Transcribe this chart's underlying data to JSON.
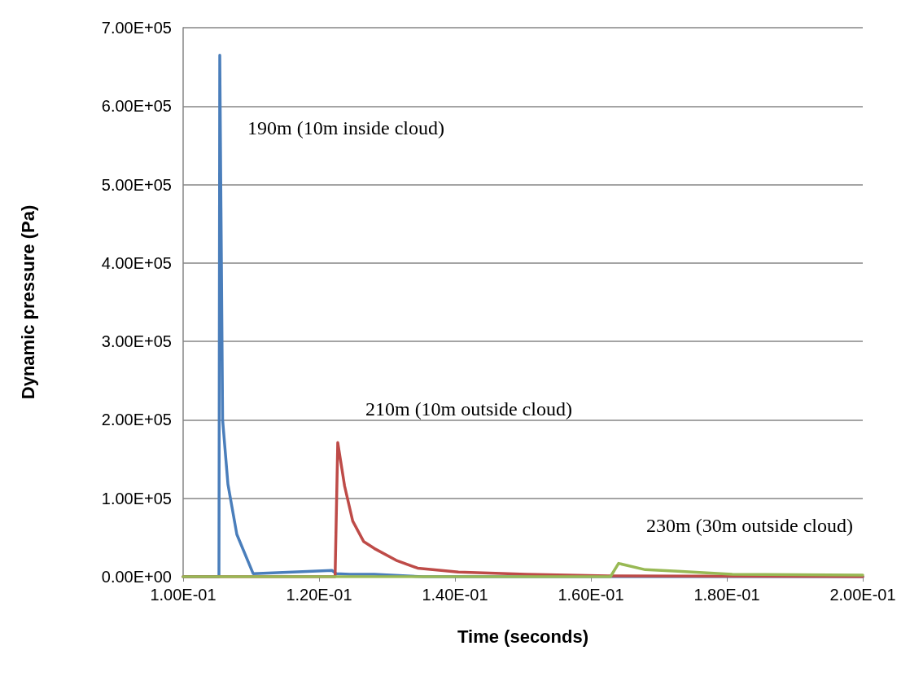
{
  "chart_data": {
    "type": "line",
    "xlabel": "Time (seconds)",
    "ylabel": "Dynamic pressure (Pa)",
    "xlim": [
      0.1,
      0.2
    ],
    "xticks": [
      {
        "value": 0.1,
        "label": "1.00E-01"
      },
      {
        "value": 0.12,
        "label": "1.20E-01"
      },
      {
        "value": 0.14,
        "label": "1.40E-01"
      },
      {
        "value": 0.16,
        "label": "1.60E-01"
      },
      {
        "value": 0.18,
        "label": "1.80E-01"
      },
      {
        "value": 0.2,
        "label": "2.00E-01"
      }
    ],
    "ylim": [
      0,
      700000
    ],
    "yticks": [
      {
        "value": 0,
        "label": "0.00E+00"
      },
      {
        "value": 100000,
        "label": "1.00E+05"
      },
      {
        "value": 200000,
        "label": "2.00E+05"
      },
      {
        "value": 300000,
        "label": "3.00E+05"
      },
      {
        "value": 400000,
        "label": "4.00E+05"
      },
      {
        "value": 500000,
        "label": "5.00E+05"
      },
      {
        "value": 600000,
        "label": "6.00E+05"
      },
      {
        "value": 700000,
        "label": "7.00E+05"
      }
    ],
    "grid": "y",
    "marker": "none",
    "line_style": "solid",
    "series": [
      {
        "name": "190m (10m inside cloud)",
        "color": "#4a7ebb",
        "x": [
          0.1,
          0.10527,
          0.10539,
          0.10581,
          0.10659,
          0.1079,
          0.1103,
          0.12192,
          0.12251,
          0.12455,
          0.12814,
          0.13533,
          0.2
        ],
        "values": [
          0,
          0,
          665000,
          200000,
          118000,
          54000,
          4000,
          8000,
          4000,
          3000,
          3000,
          0,
          0
        ]
      },
      {
        "name": "210m (10m outside cloud)",
        "color": "#be4b48",
        "x": [
          0.1,
          0.12236,
          0.12275,
          0.12375,
          0.12495,
          0.12655,
          0.12814,
          0.13134,
          0.1345,
          0.1405,
          0.1505,
          0.1625,
          0.2
        ],
        "values": [
          0,
          0,
          171000,
          116000,
          71000,
          45000,
          36000,
          21000,
          11000,
          6000,
          3000,
          1000,
          0
        ]
      },
      {
        "name": "230m (30m outside cloud)",
        "color": "#98b954",
        "x": [
          0.1,
          0.16287,
          0.16407,
          0.168,
          0.1728,
          0.1808,
          0.2
        ],
        "values": [
          0,
          0,
          17000,
          9000,
          7000,
          3000,
          2000
        ]
      }
    ]
  }
}
